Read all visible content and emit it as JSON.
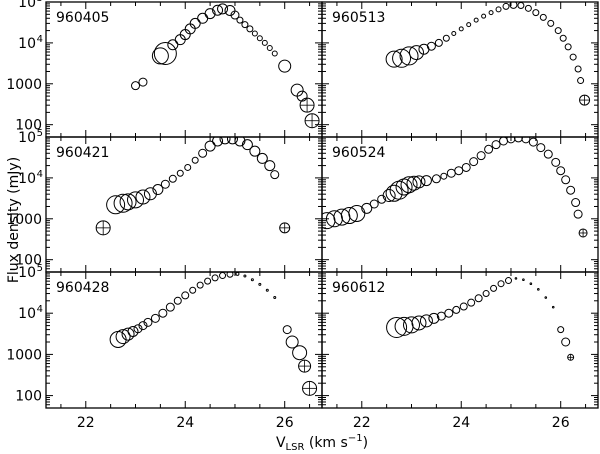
{
  "chart_data": {
    "type": "scatter",
    "xlabel": {
      "main": "V",
      "sub": "LSR",
      "units": " (km s",
      "sup": "−1",
      "close": ")"
    },
    "ylabel": "Flux density (mJy)",
    "xlim": [
      21.2,
      26.75
    ],
    "ylim": [
      50,
      100000
    ],
    "y_scale": "log",
    "x_ticks": [
      "22",
      "24",
      "26"
    ],
    "x_tick_values": [
      22,
      24,
      26
    ],
    "y_tick_labels": {
      "v100": "100",
      "v1000": "1000",
      "v1e4": "10",
      "v1e4_exp": "4",
      "v1e5": "10",
      "v1e5_exp": "5"
    },
    "marker": "open-circle",
    "size_meaning": "symbol radius grows with relative uncertainty",
    "panels": [
      {
        "label": "960405",
        "points": [
          {
            "v": 23.0,
            "f": 900,
            "r": 4
          },
          {
            "v": 23.15,
            "f": 1100,
            "r": 4
          },
          {
            "v": 23.5,
            "f": 4800,
            "r": 8
          },
          {
            "v": 23.6,
            "f": 5500,
            "r": 11
          },
          {
            "v": 23.75,
            "f": 9000,
            "r": 5
          },
          {
            "v": 23.9,
            "f": 12000,
            "r": 5
          },
          {
            "v": 24.0,
            "f": 16000,
            "r": 5
          },
          {
            "v": 24.1,
            "f": 22000,
            "r": 5
          },
          {
            "v": 24.2,
            "f": 30000,
            "r": 5
          },
          {
            "v": 24.35,
            "f": 40000,
            "r": 5
          },
          {
            "v": 24.5,
            "f": 52000,
            "r": 5
          },
          {
            "v": 24.65,
            "f": 63000,
            "r": 5
          },
          {
            "v": 24.75,
            "f": 68000,
            "r": 5
          },
          {
            "v": 24.9,
            "f": 62000,
            "r": 5
          },
          {
            "v": 25.0,
            "f": 48000,
            "r": 4
          },
          {
            "v": 25.1,
            "f": 36000,
            "r": 3
          },
          {
            "v": 25.2,
            "f": 28000,
            "r": 3
          },
          {
            "v": 25.3,
            "f": 22000,
            "r": 3
          },
          {
            "v": 25.4,
            "f": 17000,
            "r": 2.5
          },
          {
            "v": 25.5,
            "f": 13000,
            "r": 2.5
          },
          {
            "v": 25.6,
            "f": 10000,
            "r": 2.5
          },
          {
            "v": 25.7,
            "f": 7500,
            "r": 2.5
          },
          {
            "v": 25.8,
            "f": 5500,
            "r": 2.5
          },
          {
            "v": 26.0,
            "f": 2700,
            "r": 6
          },
          {
            "v": 26.25,
            "f": 700,
            "r": 6
          },
          {
            "v": 26.35,
            "f": 500,
            "r": 5
          },
          {
            "v": 26.45,
            "f": 300,
            "r": 7,
            "cross": true
          },
          {
            "v": 26.55,
            "f": 125,
            "r": 7,
            "cross": true
          }
        ]
      },
      {
        "label": "960513",
        "points": [
          {
            "v": 22.65,
            "f": 4000,
            "r": 8
          },
          {
            "v": 22.8,
            "f": 4200,
            "r": 9
          },
          {
            "v": 22.95,
            "f": 4800,
            "r": 9
          },
          {
            "v": 23.1,
            "f": 5800,
            "r": 7
          },
          {
            "v": 23.25,
            "f": 7000,
            "r": 5
          },
          {
            "v": 23.4,
            "f": 8300,
            "r": 4
          },
          {
            "v": 23.55,
            "f": 10000,
            "r": 3.5
          },
          {
            "v": 23.7,
            "f": 13000,
            "r": 3
          },
          {
            "v": 23.85,
            "f": 17000,
            "r": 2
          },
          {
            "v": 24.0,
            "f": 22000,
            "r": 2
          },
          {
            "v": 24.15,
            "f": 28000,
            "r": 2
          },
          {
            "v": 24.3,
            "f": 36000,
            "r": 2
          },
          {
            "v": 24.45,
            "f": 45000,
            "r": 2
          },
          {
            "v": 24.6,
            "f": 55000,
            "r": 2
          },
          {
            "v": 24.75,
            "f": 66000,
            "r": 2.5
          },
          {
            "v": 24.9,
            "f": 78000,
            "r": 3
          },
          {
            "v": 25.05,
            "f": 85000,
            "r": 3.5
          },
          {
            "v": 25.2,
            "f": 82000,
            "r": 3
          },
          {
            "v": 25.35,
            "f": 70000,
            "r": 3
          },
          {
            "v": 25.5,
            "f": 55000,
            "r": 3
          },
          {
            "v": 25.65,
            "f": 42000,
            "r": 3
          },
          {
            "v": 25.8,
            "f": 30000,
            "r": 3
          },
          {
            "v": 25.95,
            "f": 20000,
            "r": 3
          },
          {
            "v": 26.05,
            "f": 13000,
            "r": 3
          },
          {
            "v": 26.15,
            "f": 8000,
            "r": 3
          },
          {
            "v": 26.25,
            "f": 4500,
            "r": 3
          },
          {
            "v": 26.35,
            "f": 2300,
            "r": 3
          },
          {
            "v": 26.4,
            "f": 1200,
            "r": 3
          },
          {
            "v": 26.48,
            "f": 400,
            "r": 5,
            "cross": true
          }
        ]
      },
      {
        "label": "960421",
        "points": [
          {
            "v": 22.35,
            "f": 600,
            "r": 7,
            "cross": true
          },
          {
            "v": 22.6,
            "f": 2200,
            "r": 9
          },
          {
            "v": 22.75,
            "f": 2400,
            "r": 9
          },
          {
            "v": 22.85,
            "f": 2600,
            "r": 8
          },
          {
            "v": 23.0,
            "f": 2900,
            "r": 8
          },
          {
            "v": 23.15,
            "f": 3400,
            "r": 7
          },
          {
            "v": 23.3,
            "f": 4100,
            "r": 6
          },
          {
            "v": 23.45,
            "f": 5200,
            "r": 5
          },
          {
            "v": 23.6,
            "f": 7000,
            "r": 4
          },
          {
            "v": 23.75,
            "f": 9500,
            "r": 3.5
          },
          {
            "v": 23.9,
            "f": 13000,
            "r": 3
          },
          {
            "v": 24.05,
            "f": 18000,
            "r": 3
          },
          {
            "v": 24.2,
            "f": 27000,
            "r": 3
          },
          {
            "v": 24.35,
            "f": 40000,
            "r": 4
          },
          {
            "v": 24.5,
            "f": 60000,
            "r": 5
          },
          {
            "v": 24.65,
            "f": 80000,
            "r": 5
          },
          {
            "v": 24.8,
            "f": 90000,
            "r": 5
          },
          {
            "v": 24.95,
            "f": 90000,
            "r": 5
          },
          {
            "v": 25.1,
            "f": 80000,
            "r": 5
          },
          {
            "v": 25.25,
            "f": 65000,
            "r": 5
          },
          {
            "v": 25.4,
            "f": 45000,
            "r": 5
          },
          {
            "v": 25.55,
            "f": 30000,
            "r": 5
          },
          {
            "v": 25.7,
            "f": 20000,
            "r": 5
          },
          {
            "v": 25.8,
            "f": 12000,
            "r": 4
          },
          {
            "v": 26.0,
            "f": 600,
            "r": 5,
            "cross": true
          }
        ]
      },
      {
        "label": "960524",
        "points": [
          {
            "v": 21.3,
            "f": 900,
            "r": 8
          },
          {
            "v": 21.45,
            "f": 1000,
            "r": 8
          },
          {
            "v": 21.6,
            "f": 1100,
            "r": 8
          },
          {
            "v": 21.75,
            "f": 1200,
            "r": 8
          },
          {
            "v": 21.9,
            "f": 1350,
            "r": 8
          },
          {
            "v": 22.1,
            "f": 1800,
            "r": 5
          },
          {
            "v": 22.25,
            "f": 2300,
            "r": 4
          },
          {
            "v": 22.4,
            "f": 3000,
            "r": 4
          },
          {
            "v": 22.55,
            "f": 3700,
            "r": 6
          },
          {
            "v": 22.65,
            "f": 4200,
            "r": 8
          },
          {
            "v": 22.75,
            "f": 5000,
            "r": 9
          },
          {
            "v": 22.85,
            "f": 6000,
            "r": 8
          },
          {
            "v": 22.95,
            "f": 6800,
            "r": 8
          },
          {
            "v": 23.05,
            "f": 7400,
            "r": 7
          },
          {
            "v": 23.15,
            "f": 8000,
            "r": 6
          },
          {
            "v": 23.3,
            "f": 8600,
            "r": 5
          },
          {
            "v": 23.5,
            "f": 9500,
            "r": 4
          },
          {
            "v": 23.65,
            "f": 11000,
            "r": 3
          },
          {
            "v": 23.8,
            "f": 13000,
            "r": 4
          },
          {
            "v": 23.95,
            "f": 15000,
            "r": 4
          },
          {
            "v": 24.1,
            "f": 18000,
            "r": 4
          },
          {
            "v": 24.25,
            "f": 25000,
            "r": 4
          },
          {
            "v": 24.4,
            "f": 35000,
            "r": 4
          },
          {
            "v": 24.55,
            "f": 50000,
            "r": 4
          },
          {
            "v": 24.7,
            "f": 65000,
            "r": 4
          },
          {
            "v": 24.85,
            "f": 80000,
            "r": 4
          },
          {
            "v": 25.0,
            "f": 90000,
            "r": 4
          },
          {
            "v": 25.15,
            "f": 95000,
            "r": 4
          },
          {
            "v": 25.3,
            "f": 90000,
            "r": 4
          },
          {
            "v": 25.45,
            "f": 75000,
            "r": 4
          },
          {
            "v": 25.6,
            "f": 55000,
            "r": 4
          },
          {
            "v": 25.75,
            "f": 38000,
            "r": 4
          },
          {
            "v": 25.9,
            "f": 24000,
            "r": 4
          },
          {
            "v": 26.0,
            "f": 15000,
            "r": 4
          },
          {
            "v": 26.1,
            "f": 9000,
            "r": 4
          },
          {
            "v": 26.2,
            "f": 5000,
            "r": 4
          },
          {
            "v": 26.3,
            "f": 2500,
            "r": 4
          },
          {
            "v": 26.35,
            "f": 1300,
            "r": 4
          },
          {
            "v": 26.45,
            "f": 450,
            "r": 4,
            "cross": true
          }
        ]
      },
      {
        "label": "960428",
        "points": [
          {
            "v": 22.65,
            "f": 2300,
            "r": 8
          },
          {
            "v": 22.75,
            "f": 2700,
            "r": 7
          },
          {
            "v": 22.85,
            "f": 3100,
            "r": 6
          },
          {
            "v": 22.95,
            "f": 3600,
            "r": 5
          },
          {
            "v": 23.05,
            "f": 4200,
            "r": 4
          },
          {
            "v": 23.15,
            "f": 5000,
            "r": 4
          },
          {
            "v": 23.25,
            "f": 6000,
            "r": 4
          },
          {
            "v": 23.4,
            "f": 7500,
            "r": 4
          },
          {
            "v": 23.55,
            "f": 10000,
            "r": 4
          },
          {
            "v": 23.7,
            "f": 14000,
            "r": 4
          },
          {
            "v": 23.85,
            "f": 20000,
            "r": 3.5
          },
          {
            "v": 24.0,
            "f": 27000,
            "r": 3.5
          },
          {
            "v": 24.15,
            "f": 36000,
            "r": 3
          },
          {
            "v": 24.3,
            "f": 48000,
            "r": 3
          },
          {
            "v": 24.45,
            "f": 60000,
            "r": 3
          },
          {
            "v": 24.6,
            "f": 72000,
            "r": 3
          },
          {
            "v": 24.75,
            "f": 82000,
            "r": 3
          },
          {
            "v": 24.9,
            "f": 88000,
            "r": 3
          },
          {
            "v": 25.05,
            "f": 90000,
            "r": 1.5
          },
          {
            "v": 25.2,
            "f": 80000,
            "r": 1
          },
          {
            "v": 25.35,
            "f": 65000,
            "r": 1
          },
          {
            "v": 25.5,
            "f": 50000,
            "r": 1
          },
          {
            "v": 25.65,
            "f": 36000,
            "r": 1
          },
          {
            "v": 25.8,
            "f": 24000,
            "r": 1
          },
          {
            "v": 26.05,
            "f": 4000,
            "r": 4
          },
          {
            "v": 26.15,
            "f": 2000,
            "r": 6
          },
          {
            "v": 26.3,
            "f": 1100,
            "r": 7
          },
          {
            "v": 26.4,
            "f": 520,
            "r": 6,
            "cross": true
          },
          {
            "v": 26.5,
            "f": 150,
            "r": 7,
            "cross": true
          }
        ]
      },
      {
        "label": "960612",
        "points": [
          {
            "v": 22.7,
            "f": 4500,
            "r": 10
          },
          {
            "v": 22.85,
            "f": 4800,
            "r": 9
          },
          {
            "v": 23.0,
            "f": 5200,
            "r": 8
          },
          {
            "v": 23.15,
            "f": 5800,
            "r": 7
          },
          {
            "v": 23.3,
            "f": 6500,
            "r": 6
          },
          {
            "v": 23.45,
            "f": 7500,
            "r": 5
          },
          {
            "v": 23.6,
            "f": 8500,
            "r": 4
          },
          {
            "v": 23.75,
            "f": 10000,
            "r": 4
          },
          {
            "v": 23.9,
            "f": 12000,
            "r": 3.5
          },
          {
            "v": 24.05,
            "f": 14500,
            "r": 3.5
          },
          {
            "v": 24.2,
            "f": 18000,
            "r": 3.5
          },
          {
            "v": 24.35,
            "f": 23000,
            "r": 3.5
          },
          {
            "v": 24.5,
            "f": 30000,
            "r": 3
          },
          {
            "v": 24.65,
            "f": 40000,
            "r": 3
          },
          {
            "v": 24.8,
            "f": 52000,
            "r": 3
          },
          {
            "v": 24.95,
            "f": 62000,
            "r": 3
          },
          {
            "v": 25.1,
            "f": 70000,
            "r": 0.8
          },
          {
            "v": 25.25,
            "f": 65000,
            "r": 0.8
          },
          {
            "v": 25.4,
            "f": 52000,
            "r": 0.8
          },
          {
            "v": 25.55,
            "f": 38000,
            "r": 0.8
          },
          {
            "v": 25.7,
            "f": 24000,
            "r": 0.8
          },
          {
            "v": 25.85,
            "f": 14000,
            "r": 0.8
          },
          {
            "v": 26.0,
            "f": 4000,
            "r": 3
          },
          {
            "v": 26.1,
            "f": 2000,
            "r": 4
          },
          {
            "v": 26.2,
            "f": 850,
            "r": 3,
            "cross": true
          }
        ]
      }
    ]
  }
}
